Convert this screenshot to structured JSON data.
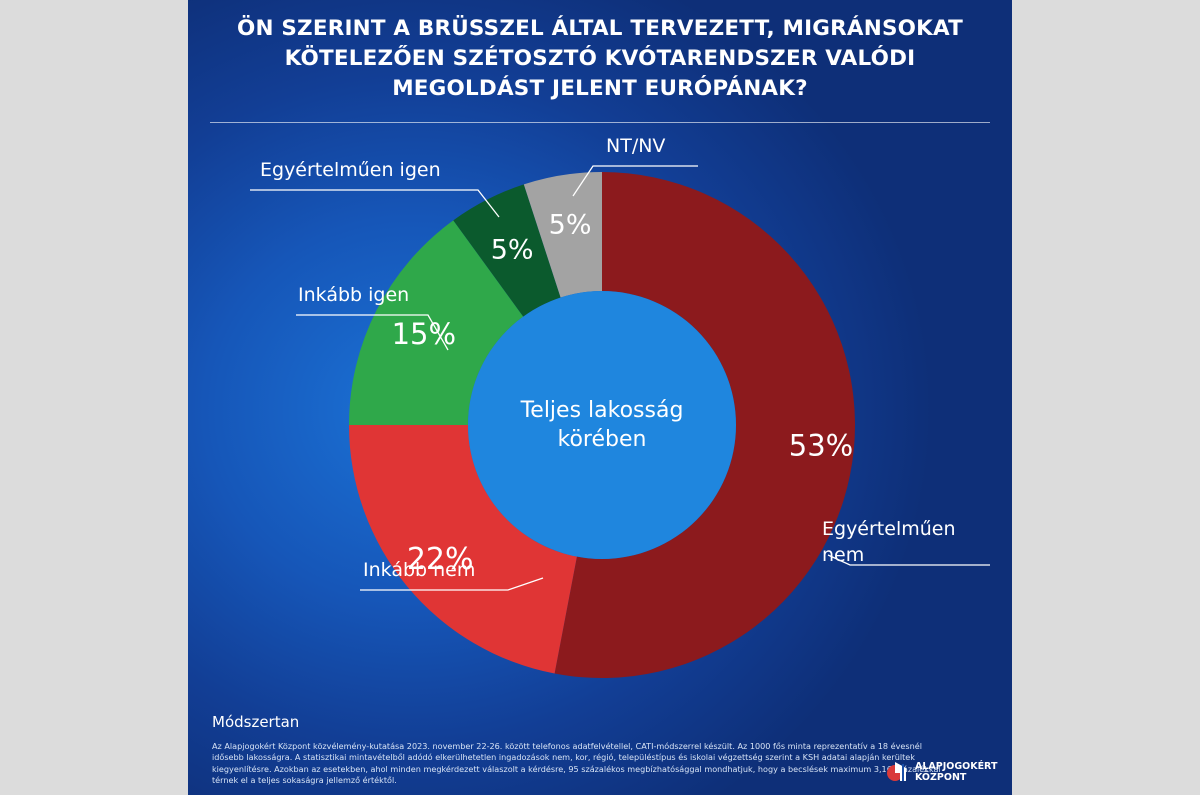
{
  "title": {
    "line1": "ÖN SZERINT A BRÜSSZEL ÁLTAL TERVEZETT, MIGRÁNSOKAT",
    "line2": "KÖTELEZŐEN SZÉTOSZTÓ KVÓTARENDSZER VALÓDI",
    "line3": "MEGOLDÁST JELENT EURÓPÁNAK?"
  },
  "chart_data": {
    "type": "pie",
    "variant": "donut",
    "center_label": [
      "Teljes lakosság",
      "körében"
    ],
    "categories": [
      "Egyértelműen nem",
      "Inkább nem",
      "Inkább igen",
      "Egyértelműen igen",
      "NT/NV"
    ],
    "values": [
      53,
      22,
      15,
      5,
      5
    ],
    "value_labels": [
      "53%",
      "22%",
      "15%",
      "5%",
      "5%"
    ],
    "colors": [
      "#8c1a1d",
      "#e03535",
      "#2fa84a",
      "#0b5a2d",
      "#a3a3a3"
    ],
    "legend_lines": [
      [
        "Egyértelműen",
        "nem"
      ],
      [
        "Inkább nem"
      ],
      [
        "Inkább igen"
      ],
      [
        "Egyértelműen igen"
      ],
      [
        "NT/NV"
      ]
    ]
  },
  "methodology": {
    "title": "Módszertan",
    "text": "Az Alapjogokért Központ közvélemény-kutatása 2023. november 22-26. között telefonos adatfelvétellel, CATI-módszerrel készült. Az 1000 fős minta reprezentatív a 18 évesnél idősebb lakosságra. A statisztikai mintavételből adódó elkerülhetetlen ingadozások nem, kor, régió, településtípus és iskolai végzettség szerint a KSH adatai alapján kerültek kiegyenlítésre. Azokban az esetekben, ahol minden megkérdezett válaszolt a kérdésre, 95 százalékos megbízhatósággal mondhatjuk, hogy a becslések maximum 3,16 százalékkal térnek el a teljes sokaságra jellemző értéktől."
  },
  "logo": {
    "line1": "ALAPJOGOKÉRT",
    "line2": "KÖZPONT"
  }
}
